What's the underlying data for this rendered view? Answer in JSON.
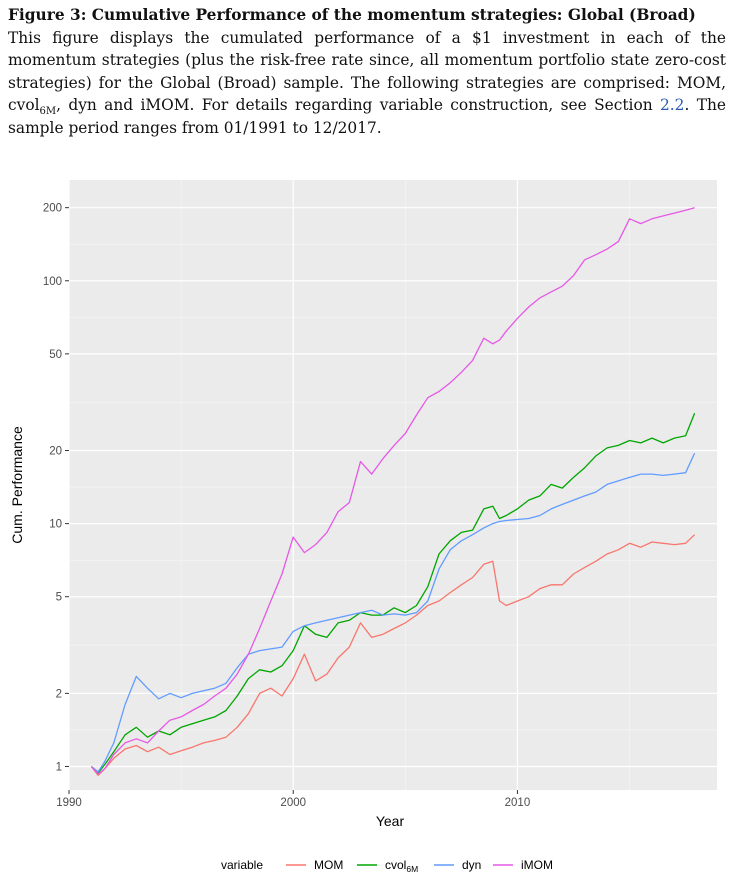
{
  "caption": {
    "title": "Figure 3: Cumulative Performance of the momentum strategies: Global (Broad)",
    "text_1": "This figure displays the cumulated performance of a $1 investment in each of the momentum strategies (plus the risk-free rate since, all momentum portfolio state zero-cost strategies) for the Global (Broad) sample. The following strategies are comprised: MOM, cvol",
    "text_1_sub": "6M",
    "text_2": ", dyn and iMOM. For details regarding variable construction, see Section ",
    "section_ref": "2.2",
    "text_3": ". The sample period ranges from 01/1991 to 12/2017."
  },
  "chart_data": {
    "type": "line",
    "title": "",
    "xlabel": "Year",
    "ylabel": "Cum. Performance",
    "xlim": [
      1990,
      2018.9
    ],
    "ylim": [
      0.8,
      260
    ],
    "yscale": "log",
    "x_ticks": [
      1990,
      2000,
      2010
    ],
    "x_tick_labels": [
      "1990",
      "2000",
      "2010"
    ],
    "y_ticks": [
      1,
      2,
      5,
      10,
      20,
      50,
      100,
      200
    ],
    "y_tick_labels": [
      "1",
      "2",
      "5",
      "10",
      "20",
      "50",
      "100",
      "200"
    ],
    "grid": true,
    "legend": {
      "title": "variable",
      "position": "bottom",
      "entries": [
        {
          "label": "MOM",
          "color": "#F8766D"
        },
        {
          "label": "cvol",
          "sub": "6M",
          "color": "#00A600"
        },
        {
          "label": "dyn",
          "color": "#619CFF"
        },
        {
          "label": "iMOM",
          "color": "#E659E6"
        }
      ]
    },
    "x": [
      1991.0,
      1991.3,
      1991.6,
      1992.0,
      1992.5,
      1993.0,
      1993.5,
      1994.0,
      1994.5,
      1995.0,
      1995.5,
      1996.0,
      1996.5,
      1997.0,
      1997.5,
      1998.0,
      1998.5,
      1999.0,
      1999.5,
      2000.0,
      2000.5,
      2001.0,
      2001.5,
      2002.0,
      2002.5,
      2003.0,
      2003.5,
      2004.0,
      2004.5,
      2005.0,
      2005.5,
      2006.0,
      2006.5,
      2007.0,
      2007.5,
      2008.0,
      2008.5,
      2008.9,
      2009.2,
      2009.5,
      2010.0,
      2010.5,
      2011.0,
      2011.5,
      2012.0,
      2012.5,
      2013.0,
      2013.5,
      2014.0,
      2014.5,
      2015.0,
      2015.5,
      2016.0,
      2016.5,
      2017.0,
      2017.5,
      2017.9
    ],
    "series": [
      {
        "name": "MOM",
        "color": "#F8766D",
        "values": [
          1.0,
          0.92,
          0.98,
          1.08,
          1.18,
          1.22,
          1.15,
          1.2,
          1.12,
          1.16,
          1.2,
          1.25,
          1.28,
          1.32,
          1.45,
          1.65,
          2.0,
          2.1,
          1.95,
          2.3,
          2.9,
          2.25,
          2.4,
          2.8,
          3.1,
          3.9,
          3.4,
          3.5,
          3.7,
          3.9,
          4.2,
          4.6,
          4.8,
          5.2,
          5.6,
          6.0,
          6.8,
          7.0,
          4.8,
          4.6,
          4.8,
          5.0,
          5.4,
          5.6,
          5.6,
          6.2,
          6.6,
          7.0,
          7.5,
          7.8,
          8.3,
          8.0,
          8.4,
          8.3,
          8.2,
          8.3,
          9.0
        ]
      },
      {
        "name": "cvol",
        "color": "#00A600",
        "values": [
          1.0,
          0.94,
          1.02,
          1.15,
          1.35,
          1.45,
          1.32,
          1.4,
          1.35,
          1.45,
          1.5,
          1.55,
          1.6,
          1.7,
          1.95,
          2.3,
          2.5,
          2.45,
          2.6,
          3.0,
          3.8,
          3.5,
          3.4,
          3.9,
          4.0,
          4.3,
          4.2,
          4.2,
          4.5,
          4.3,
          4.6,
          5.5,
          7.5,
          8.5,
          9.2,
          9.4,
          11.5,
          11.8,
          10.5,
          10.8,
          11.5,
          12.5,
          13.0,
          14.5,
          14.0,
          15.5,
          17.0,
          19.0,
          20.5,
          21.0,
          22.0,
          21.5,
          22.5,
          21.5,
          22.5,
          23.0,
          28.5
        ]
      },
      {
        "name": "dyn",
        "color": "#619CFF",
        "values": [
          1.0,
          0.95,
          1.05,
          1.25,
          1.8,
          2.35,
          2.1,
          1.9,
          2.0,
          1.92,
          2.0,
          2.05,
          2.1,
          2.2,
          2.55,
          2.9,
          3.0,
          3.05,
          3.1,
          3.6,
          3.8,
          3.9,
          4.0,
          4.1,
          4.2,
          4.3,
          4.4,
          4.2,
          4.25,
          4.2,
          4.3,
          4.8,
          6.5,
          7.8,
          8.5,
          9.0,
          9.6,
          10.0,
          10.2,
          10.3,
          10.4,
          10.5,
          10.8,
          11.5,
          12.0,
          12.5,
          13.0,
          13.5,
          14.5,
          15.0,
          15.5,
          16.0,
          16.0,
          15.8,
          16.0,
          16.2,
          19.5
        ]
      },
      {
        "name": "iMOM",
        "color": "#E659E6",
        "values": [
          1.0,
          0.93,
          0.98,
          1.12,
          1.25,
          1.3,
          1.25,
          1.4,
          1.55,
          1.6,
          1.7,
          1.8,
          1.95,
          2.1,
          2.4,
          2.9,
          3.7,
          4.8,
          6.2,
          8.8,
          7.6,
          8.2,
          9.2,
          11.2,
          12.2,
          18.0,
          16.0,
          18.5,
          21.0,
          23.5,
          28.0,
          33.0,
          35.0,
          38.0,
          42.0,
          47.0,
          58.0,
          55.0,
          57.0,
          62.0,
          70.0,
          78.0,
          85.0,
          90.0,
          95.0,
          105.0,
          122.0,
          128.0,
          135.0,
          145.0,
          180.0,
          172.0,
          180.0,
          185.0,
          190.0,
          195.0,
          200.0
        ]
      }
    ]
  }
}
